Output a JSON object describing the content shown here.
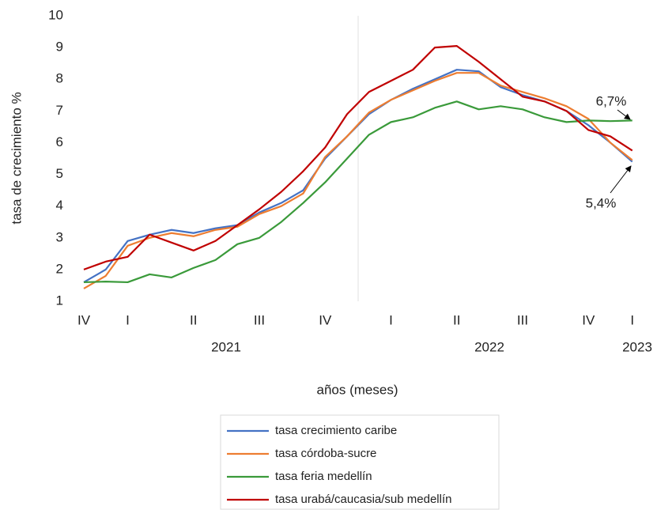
{
  "chart_data": {
    "type": "line",
    "y_label": "tasa de crecimiento %",
    "x_label": "años (meses)",
    "categories": [
      "IV",
      null,
      "I",
      null,
      null,
      "II",
      null,
      null,
      "III",
      null,
      null,
      "IV",
      null,
      null,
      "I",
      null,
      null,
      "II",
      null,
      null,
      "III",
      null,
      null,
      "IV",
      null,
      "I"
    ],
    "years": [
      "2021",
      "2022",
      "2023"
    ],
    "ylim": [
      1,
      10
    ],
    "yticks": [
      1,
      2,
      3,
      4,
      5,
      6,
      7,
      8,
      9,
      10
    ],
    "series": [
      {
        "name": "tasa crecimiento caribe",
        "color": "#4472c4",
        "values": [
          1.6,
          2.0,
          2.9,
          3.1,
          3.25,
          3.15,
          3.3,
          3.4,
          3.8,
          4.1,
          4.5,
          5.5,
          6.2,
          6.9,
          7.35,
          7.7,
          8.0,
          8.3,
          8.25,
          7.75,
          7.5,
          7.3,
          7.0,
          6.55,
          6.0,
          5.4
        ]
      },
      {
        "name": "tasa córdoba-sucre",
        "color": "#ed7d31",
        "values": [
          1.4,
          1.8,
          2.75,
          3.0,
          3.15,
          3.05,
          3.25,
          3.35,
          3.75,
          4.0,
          4.4,
          5.55,
          6.2,
          6.95,
          7.35,
          7.65,
          7.95,
          8.2,
          8.2,
          7.8,
          7.6,
          7.4,
          7.15,
          6.75,
          6.0,
          5.45
        ]
      },
      {
        "name": "tasa feria medellín",
        "color": "#3a9a3a",
        "values": [
          1.6,
          1.62,
          1.6,
          1.85,
          1.75,
          2.05,
          2.3,
          2.8,
          3.0,
          3.5,
          4.1,
          4.75,
          5.5,
          6.25,
          6.65,
          6.8,
          7.1,
          7.3,
          7.05,
          7.15,
          7.05,
          6.8,
          6.65,
          6.7,
          6.68,
          6.7
        ]
      },
      {
        "name": "tasa urabá/caucasia/sub medellín",
        "color": "#c00000",
        "values": [
          2.0,
          2.25,
          2.4,
          3.1,
          2.85,
          2.6,
          2.9,
          3.4,
          3.9,
          4.45,
          5.1,
          5.85,
          6.9,
          7.6,
          7.95,
          8.3,
          9.0,
          9.05,
          8.55,
          8.0,
          7.45,
          7.3,
          7.0,
          6.4,
          6.2,
          5.75
        ]
      }
    ],
    "annotations": [
      "6,7%",
      "5,4%"
    ]
  }
}
